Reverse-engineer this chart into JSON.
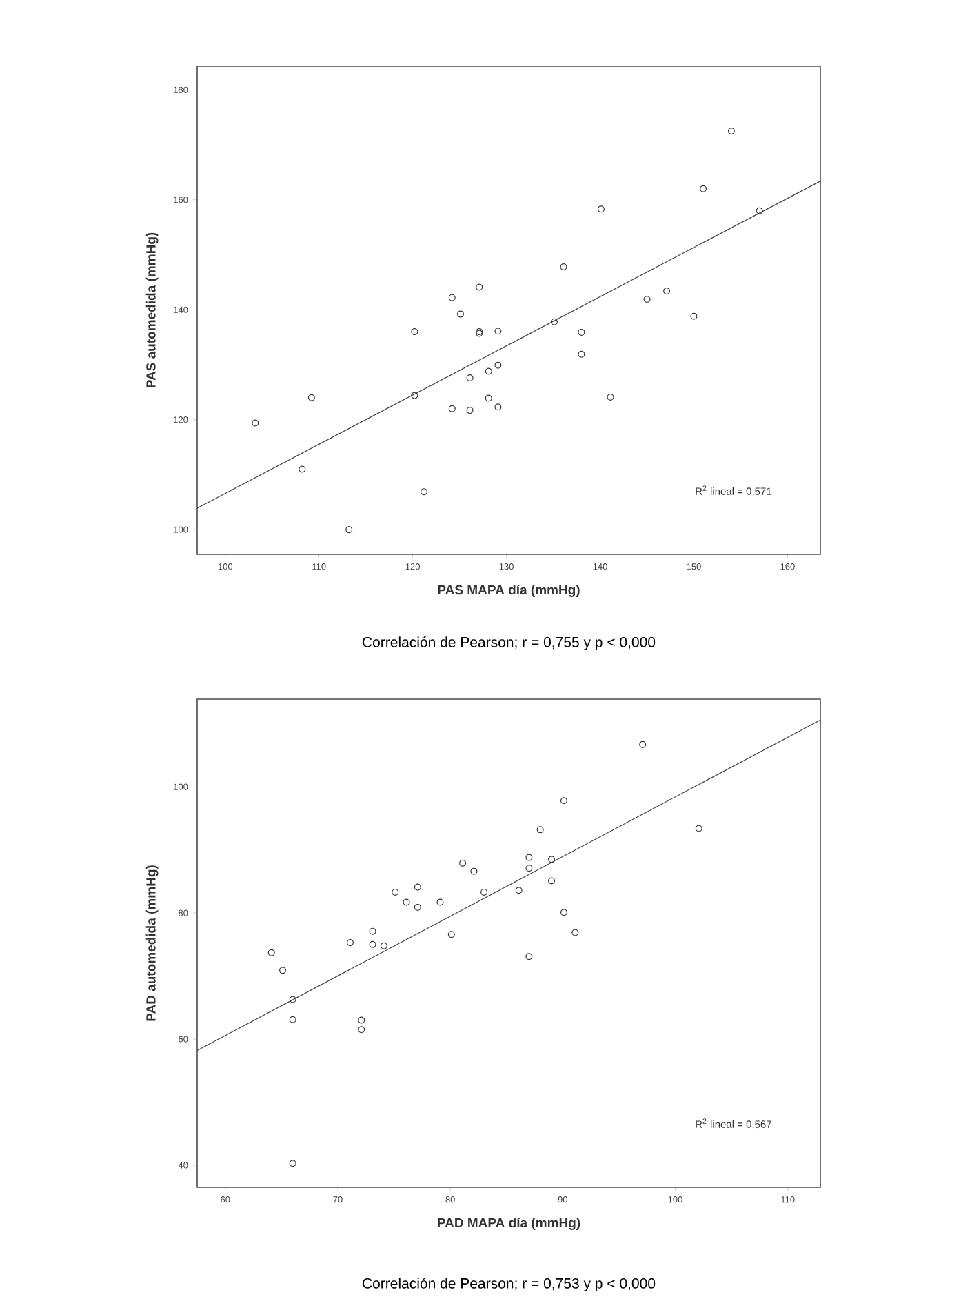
{
  "chart_data": [
    {
      "type": "scatter",
      "xlabel": "PAS MAPA día (mmHg)",
      "ylabel": "PAS automedida (mmHg)",
      "xlim": [
        97,
        163.5
      ],
      "ylim": [
        95.5,
        184.3
      ],
      "xticks": [
        100,
        110,
        120,
        130,
        140,
        150,
        160
      ],
      "yticks": [
        100,
        120,
        140,
        160,
        180
      ],
      "annotations": [
        "R$^{2}$ lineal = 0,571",
        "Correlación de Pearson; r = 0,755 y p < 0,000"
      ],
      "series": [
        {
          "marker": "circle",
          "color": "#333333",
          "x": [
            103.2,
            108.2,
            109.2,
            113.2,
            120.2,
            120.2,
            121.2,
            124.2,
            124.2,
            125.1,
            126.1,
            126.1,
            127.1,
            127.1,
            127.1,
            128.1,
            128.1,
            129.1,
            129.1,
            129.1,
            135.1,
            136.1,
            138,
            138,
            140.1,
            141.1,
            145,
            147.1,
            150,
            151,
            154,
            157
          ],
          "values": [
            119.4,
            111,
            124,
            100,
            136,
            124.4,
            106.9,
            142.2,
            122,
            139.2,
            127.6,
            121.7,
            144.1,
            135.7,
            136,
            128.8,
            123.9,
            136.1,
            129.9,
            122.3,
            137.8,
            147.8,
            135.9,
            131.9,
            158.3,
            124.1,
            141.9,
            143.4,
            138.8,
            162,
            172.5,
            158
          ]
        },
        {
          "type": "line",
          "line_style": "solid",
          "color": "#404040",
          "x": [
            97,
            163.5
          ],
          "values": [
            103.9,
            163.4
          ]
        }
      ]
    },
    {
      "type": "scatter",
      "xlabel": "PAD MAPA día (mmHg)",
      "ylabel": "PAD automedida (mmHg)",
      "xlim": [
        57.5,
        112.9
      ],
      "ylim": [
        36.5,
        113.9
      ],
      "xticks": [
        60,
        70,
        80,
        90,
        100,
        110
      ],
      "yticks": [
        40,
        60,
        80,
        100
      ],
      "annotations": [
        "R$^{2}$ lineal = 0,567",
        "Correlación de Pearson; r = 0,753 y p < 0,000"
      ],
      "series": [
        {
          "marker": "circle",
          "color": "#333333",
          "x": [
            64.1,
            65.1,
            66,
            66,
            66,
            71.1,
            72.1,
            72.1,
            73.1,
            73.1,
            74.1,
            75.1,
            76.1,
            77.1,
            77.1,
            79.1,
            80.1,
            81.1,
            82.1,
            83,
            86.1,
            87,
            87,
            87,
            88,
            89,
            89,
            90.1,
            90.1,
            91.1,
            97.1,
            102.1
          ],
          "values": [
            73.7,
            70.9,
            66.3,
            63.1,
            40.3,
            75.3,
            63,
            61.5,
            77.1,
            75,
            74.8,
            83.3,
            81.7,
            84.1,
            80.9,
            81.7,
            76.6,
            87.9,
            86.6,
            83.3,
            83.6,
            88.8,
            87.1,
            73.1,
            93.2,
            88.5,
            85.1,
            97.8,
            80.1,
            76.9,
            106.7,
            93.4
          ]
        },
        {
          "type": "line",
          "line_style": "solid",
          "color": "#404040",
          "x": [
            57.5,
            112.9
          ],
          "values": [
            58.2,
            110.6
          ]
        }
      ]
    }
  ]
}
